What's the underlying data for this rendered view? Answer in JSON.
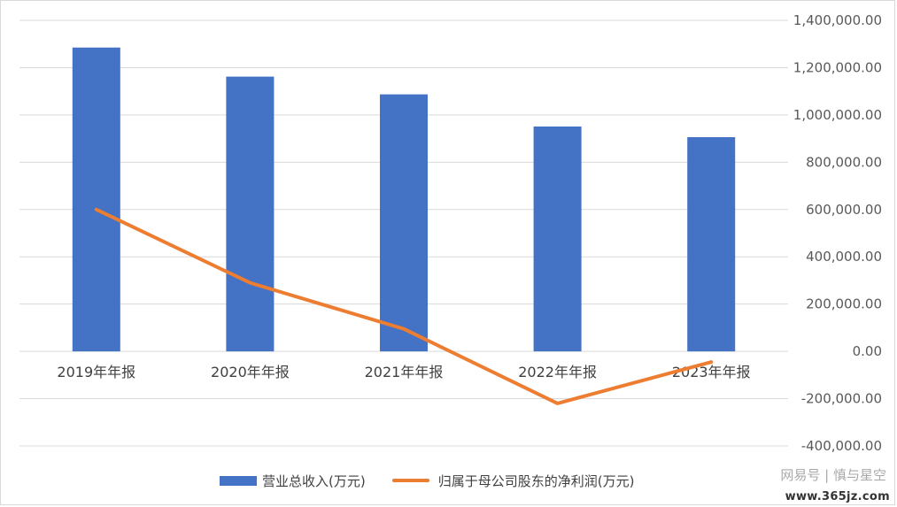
{
  "chart_data": {
    "type": "bar",
    "categories": [
      "2019年年报",
      "2020年年报",
      "2021年年报",
      "2022年年报",
      "2023年年报"
    ],
    "series": [
      {
        "name": "营业总收入(万元)",
        "type": "bar",
        "color": "#4472c4",
        "values": [
          1285000,
          1162000,
          1087000,
          951000,
          906000
        ]
      },
      {
        "name": "归属于母公司股东的净利润(万元)",
        "type": "line",
        "color": "#ed7d31",
        "values": [
          600000,
          290000,
          95000,
          -220000,
          -45000
        ]
      }
    ],
    "ylim": [
      -400000,
      1400000
    ],
    "yticks": [
      "1,400,000.00",
      "1,200,000.00",
      "1,000,000.00",
      "800,000.00",
      "600,000.00",
      "400,000.00",
      "200,000.00",
      "0.00",
      "-200,000.00",
      "-400,000.00"
    ],
    "ytick_values": [
      1400000,
      1200000,
      1000000,
      800000,
      600000,
      400000,
      200000,
      0,
      -200000,
      -400000
    ],
    "y_axis_side": "right",
    "grid": true,
    "legend": "bottom"
  },
  "watermark": {
    "text": "网易号 | 慎与星空",
    "url": "www.365jz.com"
  }
}
